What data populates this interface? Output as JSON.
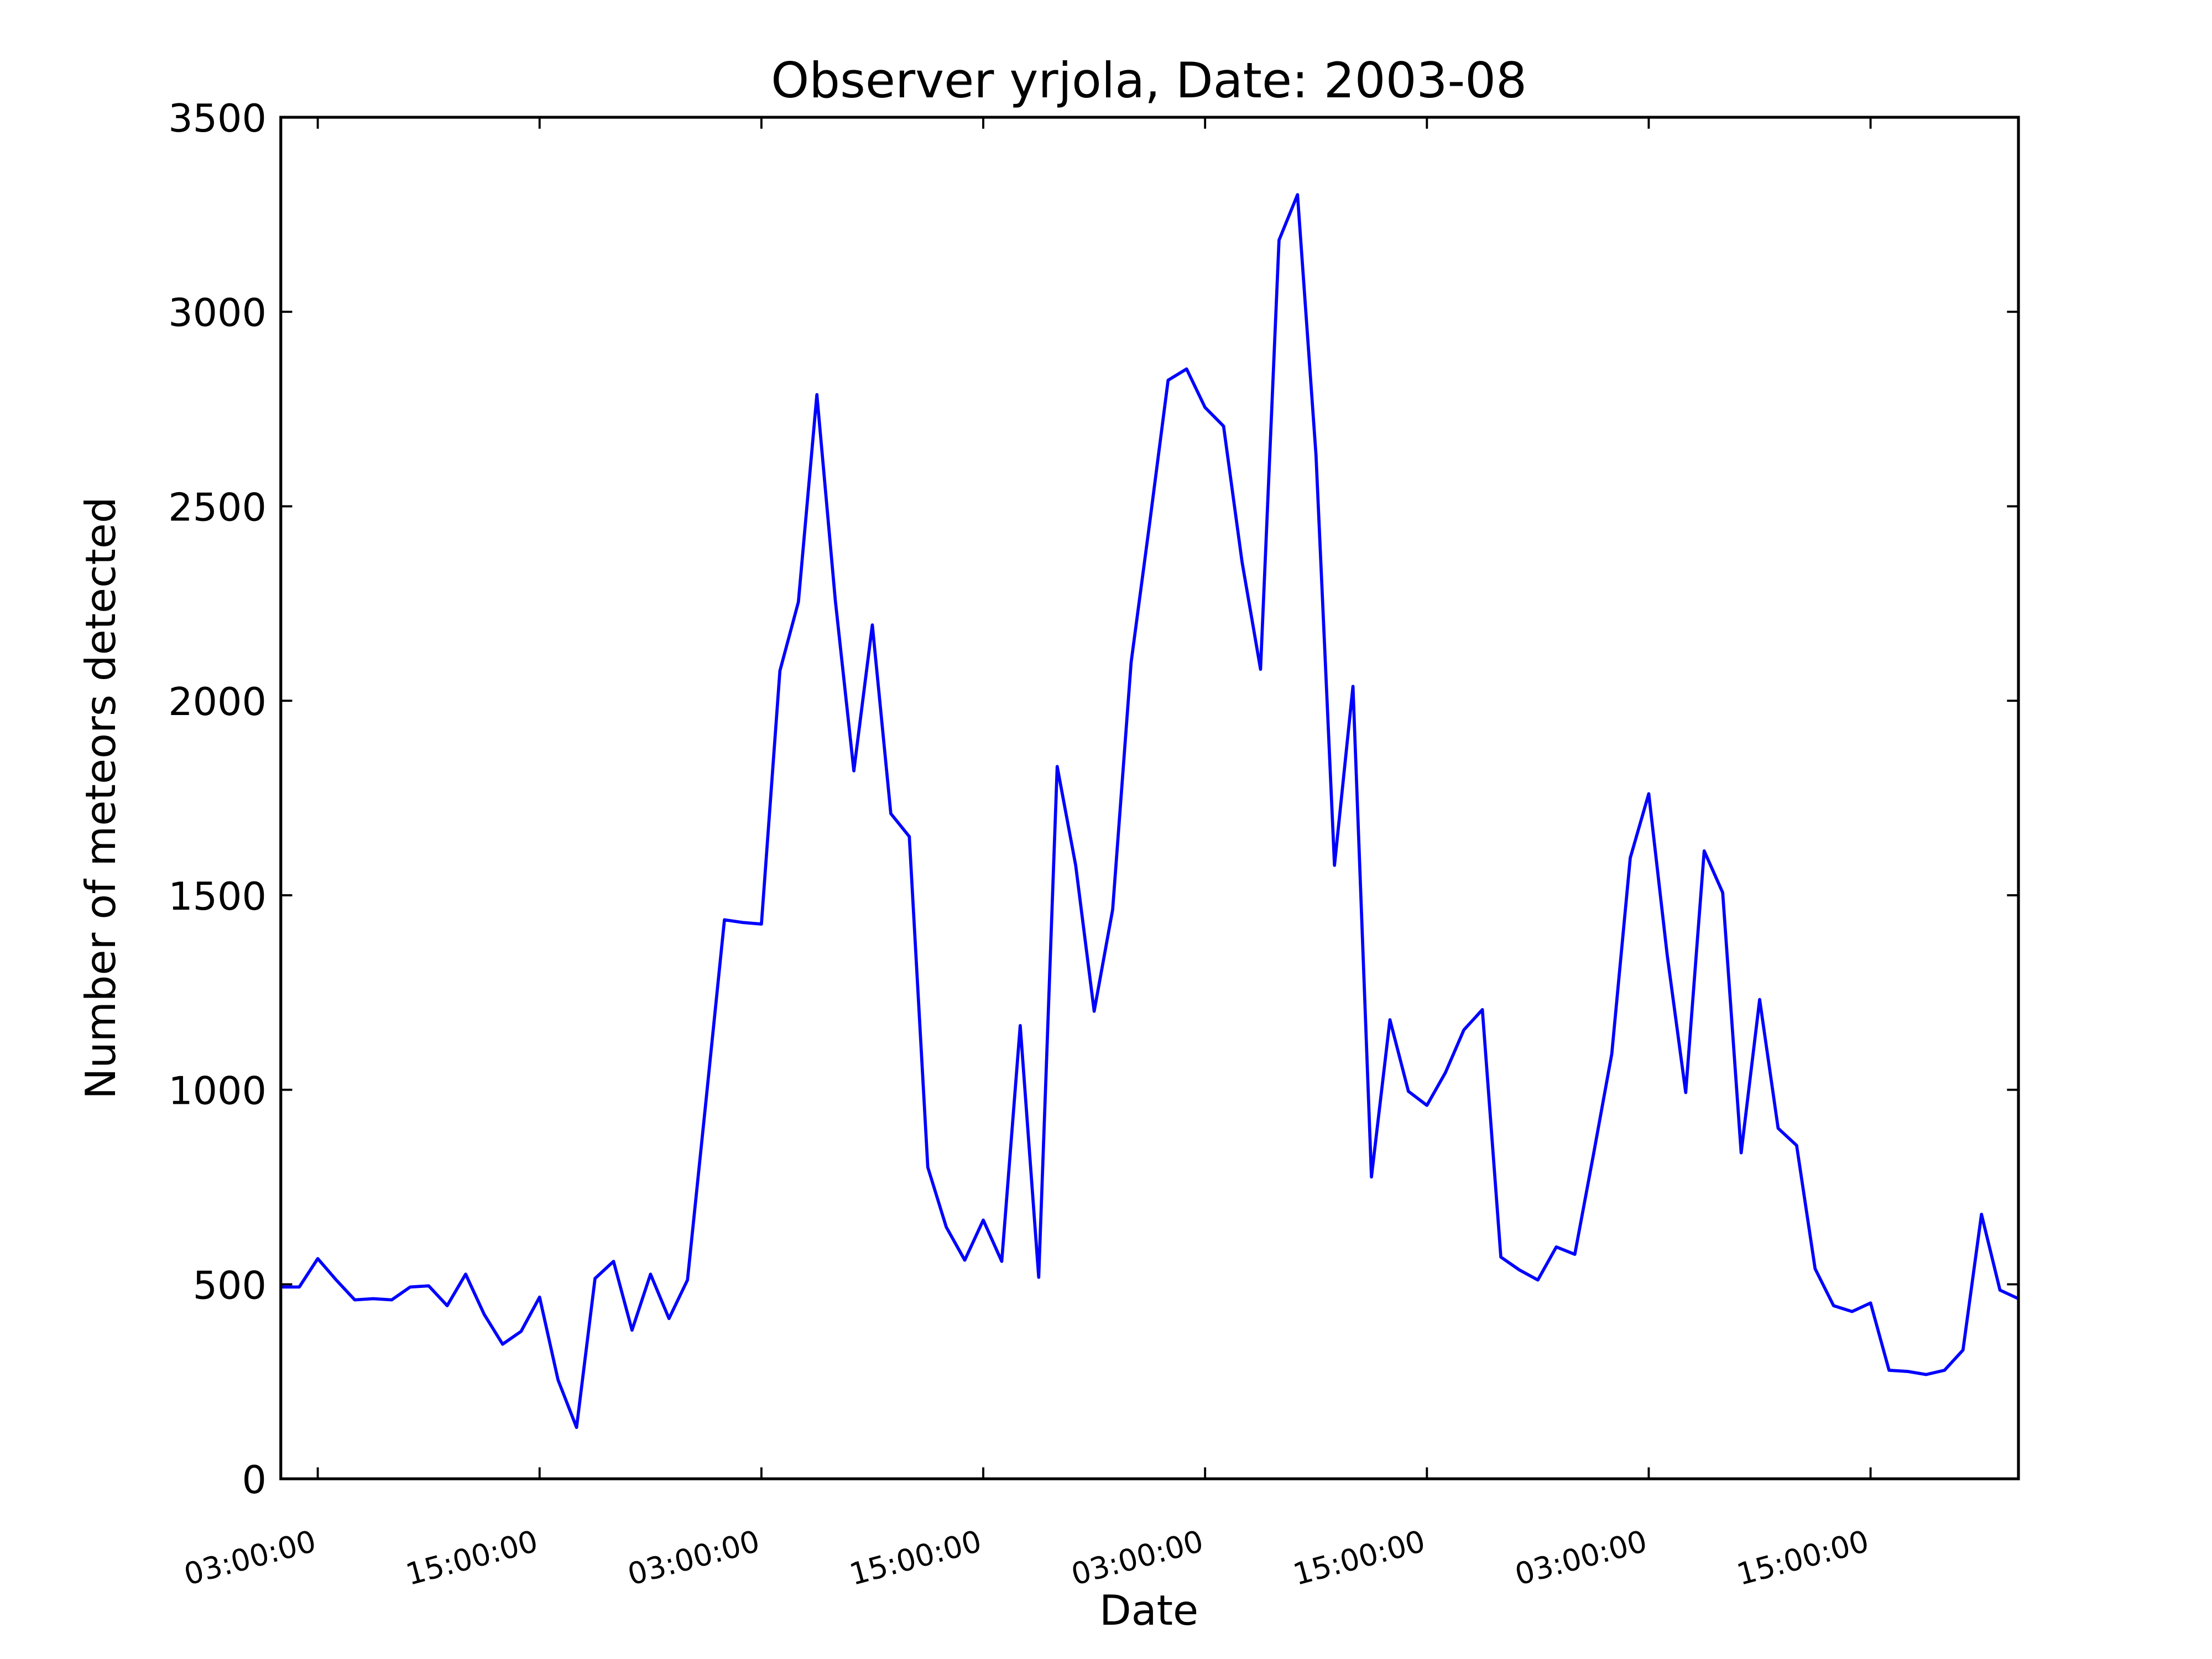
{
  "chart_data": {
    "type": "line",
    "title": "Observer yrjola, Date: 2003-08",
    "xlabel": "Date",
    "ylabel": "Number of meteors detected",
    "x": [
      1,
      2,
      3,
      4,
      5,
      6,
      7,
      8,
      9,
      10,
      11,
      12,
      13,
      14,
      15,
      16,
      17,
      18,
      19,
      20,
      21,
      22,
      23,
      24,
      25,
      26,
      27,
      28,
      29,
      30,
      31,
      32,
      33,
      34,
      35,
      36,
      37,
      38,
      39,
      40,
      41,
      42,
      43,
      44,
      45,
      46,
      47,
      48,
      49,
      50,
      51,
      52,
      53,
      54,
      55,
      56,
      57,
      58,
      59,
      60,
      61,
      62,
      63,
      64,
      65,
      66,
      67,
      68,
      69,
      70,
      71,
      72,
      73,
      74,
      75,
      76,
      77,
      78,
      79,
      80,
      81,
      82,
      83,
      84,
      85,
      86,
      87,
      88,
      89,
      90,
      91,
      92,
      93,
      94,
      95
    ],
    "series": [
      {
        "name": "yrjola",
        "color": "#0000ff",
        "values": [
          493,
          493,
          566,
          511,
          460,
          463,
          460,
          493,
          496,
          445,
          526,
          423,
          346,
          379,
          467,
          254,
          132,
          515,
          559,
          382,
          526,
          412,
          511,
          971,
          1437,
          1430,
          1426,
          2077,
          2254,
          2787,
          2257,
          1820,
          2195,
          1710,
          1651,
          801,
          647,
          562,
          665,
          559,
          1165,
          518,
          1831,
          1577,
          1202,
          1463,
          2099,
          2456,
          2824,
          2853,
          2754,
          2706,
          2357,
          2081,
          3184,
          3301,
          2632,
          1577,
          2037,
          776,
          1180,
          996,
          960,
          1044,
          1154,
          1206,
          570,
          537,
          511,
          596,
          577,
          831,
          1092,
          1596,
          1761,
          1346,
          993,
          1614,
          1507,
          838,
          1232,
          901,
          857,
          540,
          445,
          430,
          452,
          279,
          276,
          268,
          279,
          331,
          680,
          485,
          463
        ]
      }
    ],
    "xlim": [
      1,
      95
    ],
    "xticks": [
      {
        "value": 3,
        "label": "03:00:00"
      },
      {
        "value": 15,
        "label": "15:00:00"
      },
      {
        "value": 27,
        "label": "03:00:00"
      },
      {
        "value": 39,
        "label": "15:00:00"
      },
      {
        "value": 51,
        "label": "03:00:00"
      },
      {
        "value": 63,
        "label": "15:00:00"
      },
      {
        "value": 75,
        "label": "03:00:00"
      },
      {
        "value": 87,
        "label": "15:00:00"
      }
    ],
    "ylim": [
      0,
      3500
    ],
    "yticks": [
      0,
      500,
      1000,
      1500,
      2000,
      2500,
      3000,
      3500
    ]
  }
}
